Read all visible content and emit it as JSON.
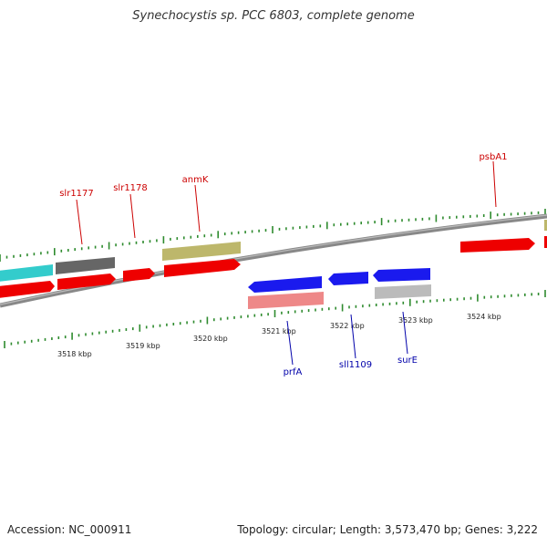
{
  "title": "Synechocystis sp. PCC 6803, complete genome",
  "footer": {
    "accession": "Accession: NC_000911",
    "summary": "Topology: circular; Length: 3,573,470 bp; Genes: 3,222"
  },
  "colors": {
    "backbone": "#888888",
    "ticks": "#2e8b2e",
    "forward_labels": "#cc0000",
    "reverse_labels": "#0000aa",
    "red_gene": "#ee0000",
    "blue_gene": "#1a1aee",
    "olive_gene": "#bdb76b",
    "cyan_gene": "#33cccc",
    "dark_gray_gene": "#666666",
    "pink_gene": "#ee8888",
    "light_gray_gene": "#bbbbbb"
  },
  "scale_labels": [
    "3518 kbp",
    "3519 kbp",
    "3520 kbp",
    "3521 kbp",
    "3522 kbp",
    "3523 kbp",
    "3524 kbp"
  ],
  "gene_labels": {
    "forward": [
      "slr1177",
      "slr1178",
      "anmK",
      "psbA1"
    ],
    "reverse": [
      "prfA",
      "sll1109",
      "surE"
    ]
  }
}
